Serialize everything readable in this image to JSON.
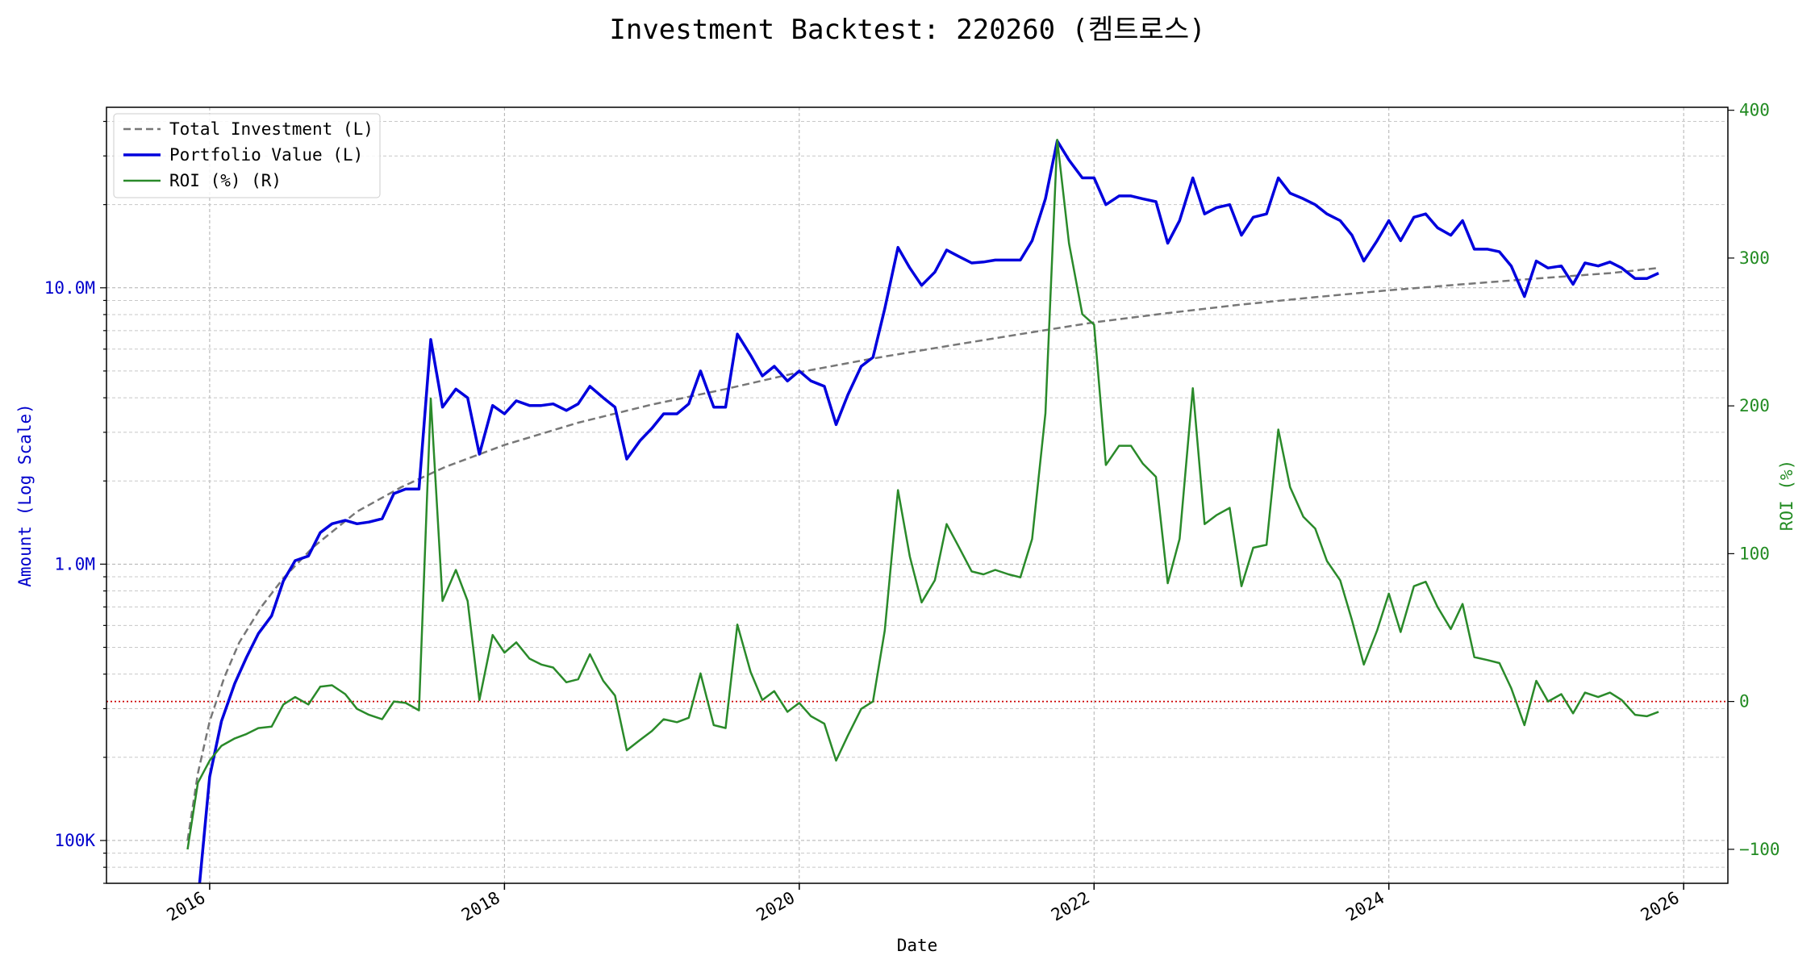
{
  "chart_data": {
    "type": "line",
    "title": "Investment Backtest: 220260 (켐트로스)",
    "xlabel": "Date",
    "ylabel_left": "Amount (Log Scale)",
    "ylabel_right": "ROI (%)",
    "left_axis": {
      "scale": "log",
      "range": [
        70000,
        45000000
      ],
      "ticks": [
        {
          "value": 100000,
          "label": "100K"
        },
        {
          "value": 1000000,
          "label": "1.0M"
        },
        {
          "value": 10000000,
          "label": "10.0M"
        }
      ],
      "color": "#0000cc"
    },
    "right_axis": {
      "scale": "linear",
      "range": [
        -123,
        402
      ],
      "ticks": [
        {
          "value": -100,
          "label": "−100"
        },
        {
          "value": 0,
          "label": "0"
        },
        {
          "value": 100,
          "label": "100"
        },
        {
          "value": 200,
          "label": "200"
        },
        {
          "value": 300,
          "label": "300"
        },
        {
          "value": 400,
          "label": "400"
        }
      ],
      "color": "#228b22"
    },
    "x_axis": {
      "range": [
        2015.3,
        2026.3
      ],
      "ticks": [
        {
          "value": 2016,
          "label": "2016"
        },
        {
          "value": 2018,
          "label": "2018"
        },
        {
          "value": 2020,
          "label": "2020"
        },
        {
          "value": 2022,
          "label": "2022"
        },
        {
          "value": 2024,
          "label": "2024"
        },
        {
          "value": 2026,
          "label": "2026"
        }
      ]
    },
    "grid": true,
    "legend_position": "top-left",
    "reference_line": {
      "axis": "right",
      "value": 0,
      "color": "#cc0000",
      "style": "dotted"
    },
    "series": [
      {
        "name": "Total Investment (L)",
        "axis": "left",
        "color": "#777777",
        "style": "dashed",
        "x": [
          2015.85,
          2015.92,
          2016.0,
          2016.1,
          2016.2,
          2016.35,
          2016.5,
          2016.7,
          2017.0,
          2017.3,
          2017.6,
          2018.0,
          2018.5,
          2019.0,
          2019.5,
          2020.0,
          2020.5,
          2021.0,
          2021.5,
          2022.0,
          2022.5,
          2023.0,
          2023.5,
          2024.0,
          2024.5,
          2025.0,
          2025.5,
          2025.83
        ],
        "y": [
          100000,
          175000,
          270000,
          390000,
          520000,
          700000,
          890000,
          1150000,
          1550000,
          1900000,
          2250000,
          2700000,
          3250000,
          3780000,
          4300000,
          4950000,
          5550000,
          6150000,
          6800000,
          7500000,
          8100000,
          8700000,
          9250000,
          9800000,
          10300000,
          10800000,
          11300000,
          11800000
        ]
      },
      {
        "name": "Portfolio Value (L)",
        "axis": "left",
        "color": "#0000dd",
        "style": "solid",
        "x": [
          2015.92,
          2016.0,
          2016.08,
          2016.17,
          2016.25,
          2016.33,
          2016.42,
          2016.5,
          2016.58,
          2016.67,
          2016.75,
          2016.83,
          2016.92,
          2017.0,
          2017.08,
          2017.17,
          2017.25,
          2017.33,
          2017.42,
          2017.5,
          2017.58,
          2017.67,
          2017.75,
          2017.83,
          2017.92,
          2018.0,
          2018.08,
          2018.17,
          2018.25,
          2018.33,
          2018.42,
          2018.5,
          2018.58,
          2018.67,
          2018.75,
          2018.83,
          2018.92,
          2019.0,
          2019.08,
          2019.17,
          2019.25,
          2019.33,
          2019.42,
          2019.5,
          2019.58,
          2019.67,
          2019.75,
          2019.83,
          2019.92,
          2020.0,
          2020.08,
          2020.17,
          2020.25,
          2020.33,
          2020.42,
          2020.5,
          2020.58,
          2020.67,
          2020.75,
          2020.83,
          2020.92,
          2021.0,
          2021.08,
          2021.17,
          2021.25,
          2021.33,
          2021.42,
          2021.5,
          2021.58,
          2021.67,
          2021.75,
          2021.83,
          2021.92,
          2022.0,
          2022.08,
          2022.17,
          2022.25,
          2022.33,
          2022.42,
          2022.5,
          2022.58,
          2022.67,
          2022.75,
          2022.83,
          2022.92,
          2023.0,
          2023.08,
          2023.17,
          2023.25,
          2023.33,
          2023.42,
          2023.5,
          2023.58,
          2023.67,
          2023.75,
          2023.83,
          2023.92,
          2024.0,
          2024.08,
          2024.17,
          2024.25,
          2024.33,
          2024.42,
          2024.5,
          2024.58,
          2024.67,
          2024.75,
          2024.83,
          2024.92,
          2025.0,
          2025.08,
          2025.17,
          2025.25,
          2025.33,
          2025.42,
          2025.5,
          2025.58,
          2025.67,
          2025.75,
          2025.83
        ],
        "y": [
          60000,
          170000,
          270000,
          370000,
          460000,
          560000,
          650000,
          870000,
          1030000,
          1070000,
          1300000,
          1400000,
          1440000,
          1400000,
          1420000,
          1460000,
          1800000,
          1870000,
          1870000,
          6500000,
          3700000,
          4300000,
          4000000,
          2500000,
          3750000,
          3500000,
          3900000,
          3750000,
          3750000,
          3800000,
          3600000,
          3800000,
          4400000,
          4000000,
          3700000,
          2400000,
          2800000,
          3100000,
          3500000,
          3500000,
          3800000,
          5000000,
          3700000,
          3700000,
          6800000,
          5700000,
          4800000,
          5200000,
          4600000,
          5000000,
          4600000,
          4400000,
          3200000,
          4100000,
          5200000,
          5600000,
          8400000,
          14000000,
          11800000,
          10200000,
          11400000,
          13700000,
          13000000,
          12300000,
          12400000,
          12600000,
          12600000,
          12600000,
          14800000,
          21000000,
          34000000,
          29000000,
          25000000,
          25000000,
          20000000,
          21500000,
          21500000,
          21000000,
          20500000,
          14500000,
          17500000,
          25000000,
          18500000,
          19500000,
          20000000,
          15500000,
          18000000,
          18500000,
          25000000,
          22000000,
          21000000,
          20000000,
          18500000,
          17500000,
          15500000,
          12500000,
          14800000,
          17500000,
          14800000,
          18000000,
          18500000,
          16500000,
          15500000,
          17500000,
          13800000,
          13800000,
          13500000,
          12000000,
          9300000,
          12500000,
          11800000,
          12000000,
          10300000,
          12300000,
          12000000,
          12400000,
          11800000,
          10800000,
          10800000,
          11300000
        ]
      },
      {
        "name": "ROI (%) (R)",
        "axis": "right",
        "color": "#2a8a2a",
        "style": "solid",
        "x": [
          2015.85,
          2015.92,
          2016.0,
          2016.08,
          2016.17,
          2016.25,
          2016.33,
          2016.42,
          2016.5,
          2016.58,
          2016.67,
          2016.75,
          2016.83,
          2016.92,
          2017.0,
          2017.08,
          2017.17,
          2017.25,
          2017.33,
          2017.42,
          2017.5,
          2017.58,
          2017.67,
          2017.75,
          2017.83,
          2017.92,
          2018.0,
          2018.08,
          2018.17,
          2018.25,
          2018.33,
          2018.42,
          2018.5,
          2018.58,
          2018.67,
          2018.75,
          2018.83,
          2018.92,
          2019.0,
          2019.08,
          2019.17,
          2019.25,
          2019.33,
          2019.42,
          2019.5,
          2019.58,
          2019.67,
          2019.75,
          2019.83,
          2019.92,
          2020.0,
          2020.08,
          2020.17,
          2020.25,
          2020.33,
          2020.42,
          2020.5,
          2020.58,
          2020.67,
          2020.75,
          2020.83,
          2020.92,
          2021.0,
          2021.08,
          2021.17,
          2021.25,
          2021.33,
          2021.42,
          2021.5,
          2021.58,
          2021.67,
          2021.75,
          2021.83,
          2021.92,
          2022.0,
          2022.08,
          2022.17,
          2022.25,
          2022.33,
          2022.42,
          2022.5,
          2022.58,
          2022.67,
          2022.75,
          2022.83,
          2022.92,
          2023.0,
          2023.08,
          2023.17,
          2023.25,
          2023.33,
          2023.42,
          2023.5,
          2023.58,
          2023.67,
          2023.75,
          2023.83,
          2023.92,
          2024.0,
          2024.08,
          2024.17,
          2024.25,
          2024.33,
          2024.42,
          2024.5,
          2024.58,
          2024.67,
          2024.75,
          2024.83,
          2024.92,
          2025.0,
          2025.08,
          2025.17,
          2025.25,
          2025.33,
          2025.42,
          2025.5,
          2025.58,
          2025.67,
          2025.75,
          2025.83
        ],
        "y": [
          -100,
          -55,
          -40,
          -30,
          -25,
          -22,
          -18,
          -17,
          -2,
          3,
          -2,
          10,
          11,
          5,
          -5,
          -9,
          -12,
          0,
          -1,
          -6,
          205,
          68,
          89,
          68,
          1,
          45,
          33,
          40,
          29,
          25,
          23,
          13,
          15,
          32,
          14,
          4,
          -33,
          -26,
          -20,
          -12,
          -14,
          -11,
          19,
          -16,
          -18,
          52,
          20,
          1,
          7,
          -7,
          -1,
          -10,
          -15,
          -40,
          -23,
          -5,
          0,
          48,
          143,
          98,
          67,
          82,
          120,
          105,
          88,
          86,
          89,
          86,
          84,
          110,
          195,
          380,
          310,
          262,
          255,
          160,
          173,
          173,
          161,
          152,
          80,
          110,
          212,
          120,
          126,
          131,
          78,
          104,
          106,
          184,
          145,
          125,
          117,
          95,
          82,
          55,
          25,
          48,
          73,
          47,
          78,
          81,
          64,
          49,
          66,
          30,
          28,
          26,
          9,
          -16,
          14,
          0,
          5,
          -8,
          6,
          3,
          6,
          1,
          -9,
          -10,
          -7
        ]
      }
    ]
  }
}
